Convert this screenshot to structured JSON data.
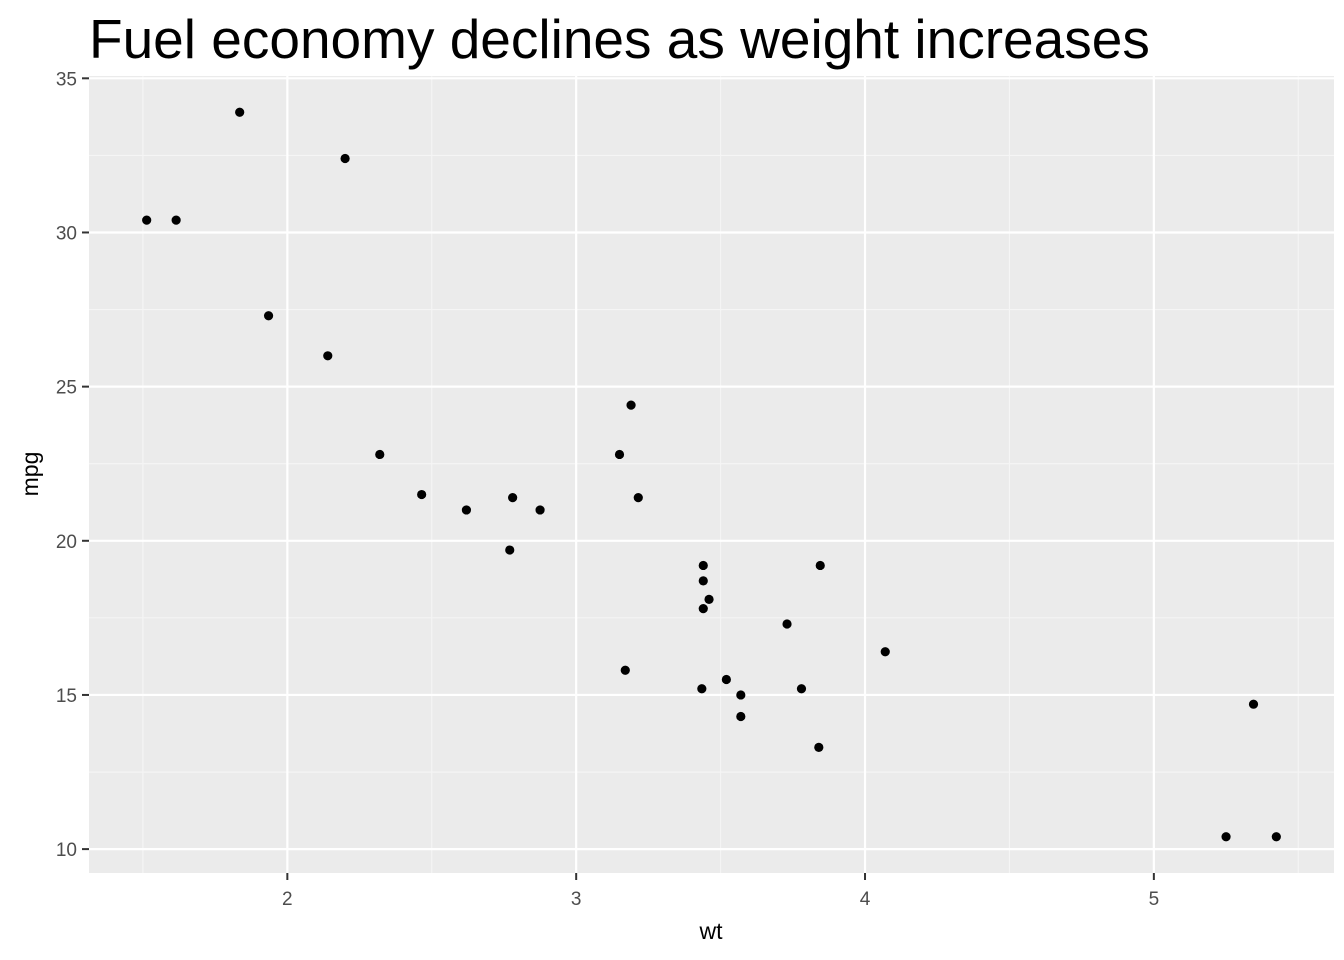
{
  "colors": {
    "panel_background": "#EBEBEB",
    "grid_major": "#FFFFFF",
    "grid_minor": "#F5F5F5",
    "point": "#000000",
    "tick_text": "#4D4D4D",
    "tick_mark": "#333333"
  },
  "chart_data": {
    "type": "scatter",
    "title": "Fuel economy declines as weight increases",
    "xlabel": "wt",
    "ylabel": "mpg",
    "xlim": [
      1.3133,
      5.6237
    ],
    "ylim": [
      9.225,
      35.075
    ],
    "x_ticks": [
      2,
      3,
      4,
      5
    ],
    "y_ticks": [
      10,
      15,
      20,
      25,
      30,
      35
    ],
    "x_tick_labels": [
      "2",
      "3",
      "4",
      "5"
    ],
    "y_tick_labels": [
      "10",
      "15",
      "20",
      "25",
      "30",
      "35"
    ],
    "x_minor_ticks": [
      1.5,
      2.5,
      3.5,
      4.5,
      5.5
    ],
    "y_minor_ticks": [
      12.5,
      17.5,
      22.5,
      27.5,
      32.5
    ],
    "grid": true,
    "legend": "none",
    "series": [
      {
        "x": [
          2.62,
          2.875,
          2.32,
          3.215,
          3.44,
          3.46,
          3.57,
          3.19,
          3.15,
          3.44,
          3.44,
          4.07,
          3.73,
          3.78,
          5.25,
          5.424,
          5.345,
          2.2,
          1.615,
          1.835,
          2.465,
          3.52,
          3.435,
          3.84,
          3.845,
          1.935,
          2.14,
          1.513,
          3.17,
          2.77,
          3.57,
          2.78
        ],
        "y": [
          21.0,
          21.0,
          22.8,
          21.4,
          18.7,
          18.1,
          14.3,
          24.4,
          22.8,
          19.2,
          17.8,
          16.4,
          17.3,
          15.2,
          10.4,
          10.4,
          14.7,
          32.4,
          30.4,
          33.9,
          21.5,
          15.5,
          15.2,
          13.3,
          19.2,
          27.3,
          26.0,
          30.4,
          15.8,
          19.7,
          15.0,
          21.4
        ]
      }
    ]
  }
}
